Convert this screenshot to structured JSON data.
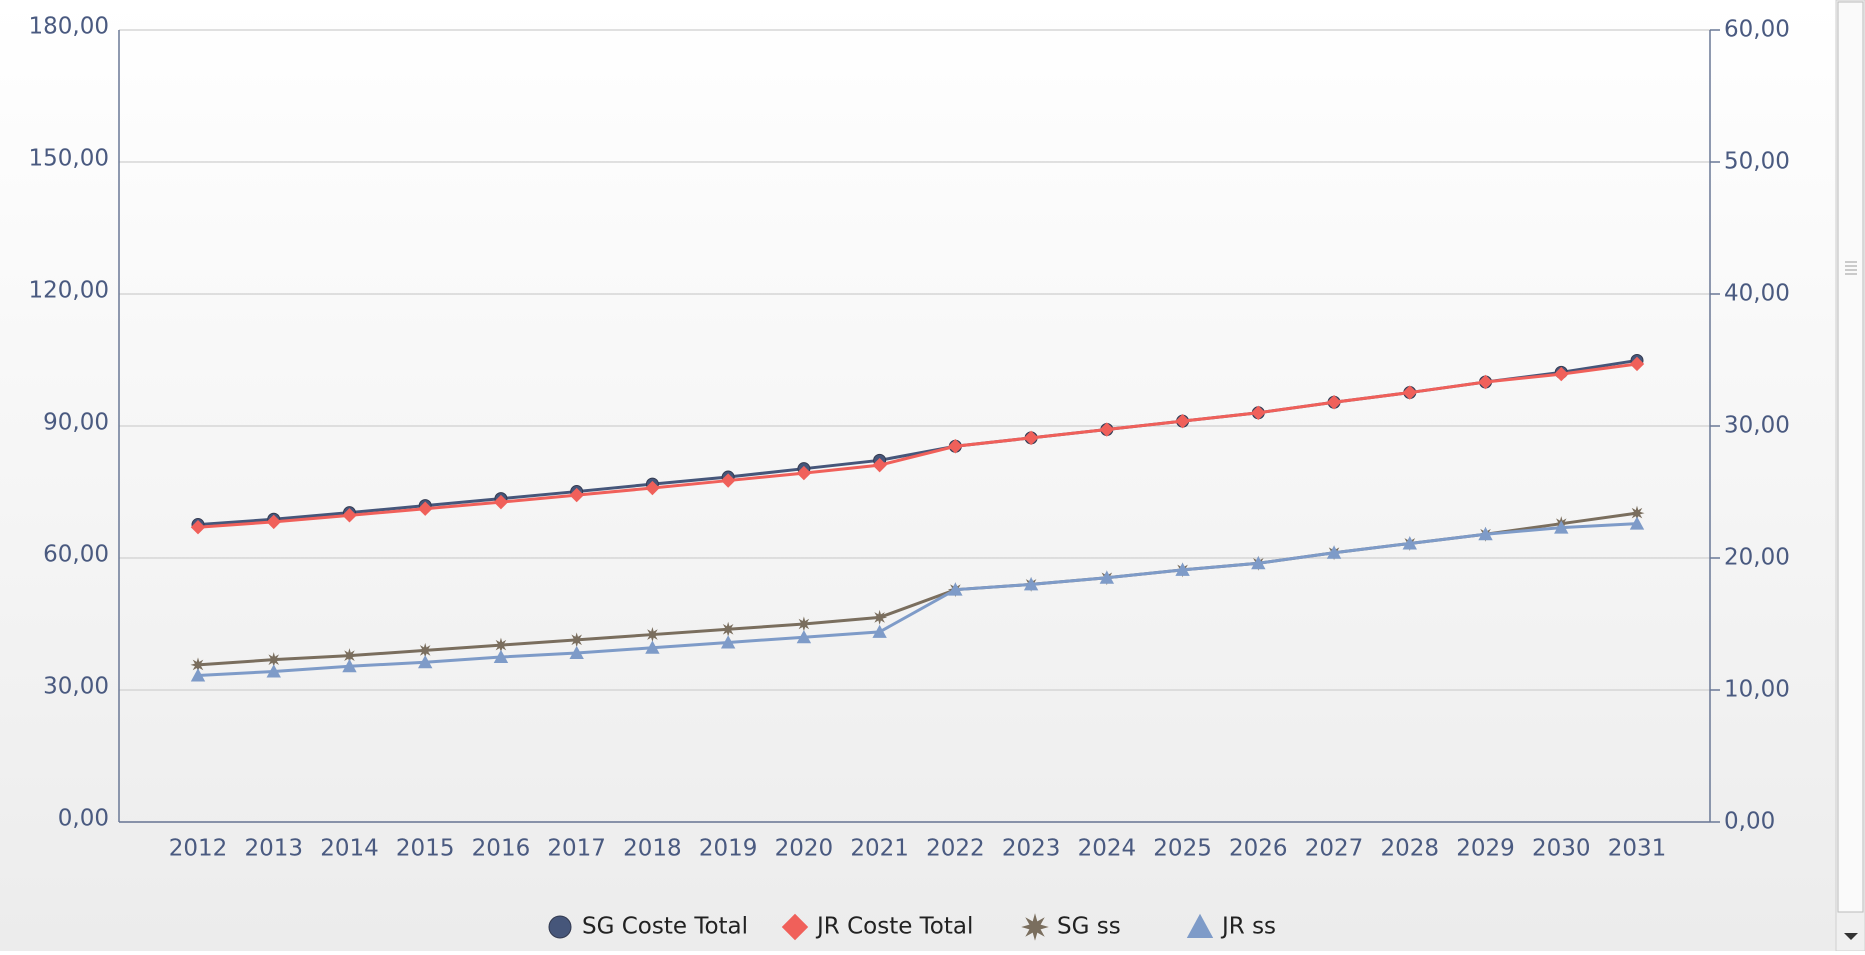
{
  "chart_data": {
    "type": "line",
    "categories": [
      "2012",
      "2013",
      "2014",
      "2015",
      "2016",
      "2017",
      "2018",
      "2019",
      "2020",
      "2021",
      "2022",
      "2023",
      "2024",
      "2025",
      "2026",
      "2027",
      "2028",
      "2029",
      "2030",
      "2031"
    ],
    "series": [
      {
        "name": "SG Coste Total",
        "color": "#46567a",
        "marker": "circle",
        "axis": "y",
        "values": [
          67.6,
          68.8,
          70.3,
          71.9,
          73.5,
          75.1,
          76.8,
          78.4,
          80.3,
          82.2,
          85.4,
          87.3,
          89.2,
          91.1,
          93.0,
          95.4,
          97.6,
          100.0,
          102.2,
          104.9
        ]
      },
      {
        "name": "JR Coste Total",
        "color": "#f0605a",
        "marker": "diamond",
        "axis": "y",
        "values": [
          67.0,
          68.2,
          69.7,
          71.2,
          72.7,
          74.3,
          75.9,
          77.6,
          79.3,
          81.1,
          85.4,
          87.3,
          89.2,
          91.1,
          93.0,
          95.4,
          97.6,
          100.0,
          101.8,
          104.1
        ]
      },
      {
        "name": "SG ss",
        "color": "#7a6e5e",
        "marker": "star",
        "axis": "y2",
        "values": [
          11.9,
          12.3,
          12.6,
          13.0,
          13.4,
          13.8,
          14.2,
          14.6,
          15.0,
          15.5,
          17.6,
          18.0,
          18.5,
          19.1,
          19.6,
          20.4,
          21.1,
          21.8,
          22.6,
          23.4
        ]
      },
      {
        "name": "JR ss",
        "color": "#7e9bc8",
        "marker": "triangle",
        "axis": "y2",
        "values": [
          11.1,
          11.4,
          11.8,
          12.1,
          12.5,
          12.8,
          13.2,
          13.6,
          14.0,
          14.4,
          17.6,
          18.0,
          18.5,
          19.1,
          19.6,
          20.4,
          21.1,
          21.8,
          22.3,
          22.6
        ]
      }
    ],
    "ylim": [
      0,
      180
    ],
    "yticks": [
      {
        "value": 0,
        "label": "0,00"
      },
      {
        "value": 30,
        "label": "30,00"
      },
      {
        "value": 60,
        "label": "60,00"
      },
      {
        "value": 90,
        "label": "90,00"
      },
      {
        "value": 120,
        "label": "120,00"
      },
      {
        "value": 150,
        "label": "150,00"
      },
      {
        "value": 180,
        "label": "180,00"
      }
    ],
    "y2lim": [
      0,
      60
    ],
    "y2ticks": [
      {
        "value": 0,
        "label": "0,00"
      },
      {
        "value": 10,
        "label": "10,00"
      },
      {
        "value": 20,
        "label": "20,00"
      },
      {
        "value": 30,
        "label": "30,00"
      },
      {
        "value": 40,
        "label": "40,00"
      },
      {
        "value": 50,
        "label": "50,00"
      },
      {
        "value": 60,
        "label": "60,00"
      }
    ],
    "grid": true,
    "legend": "bottom"
  }
}
